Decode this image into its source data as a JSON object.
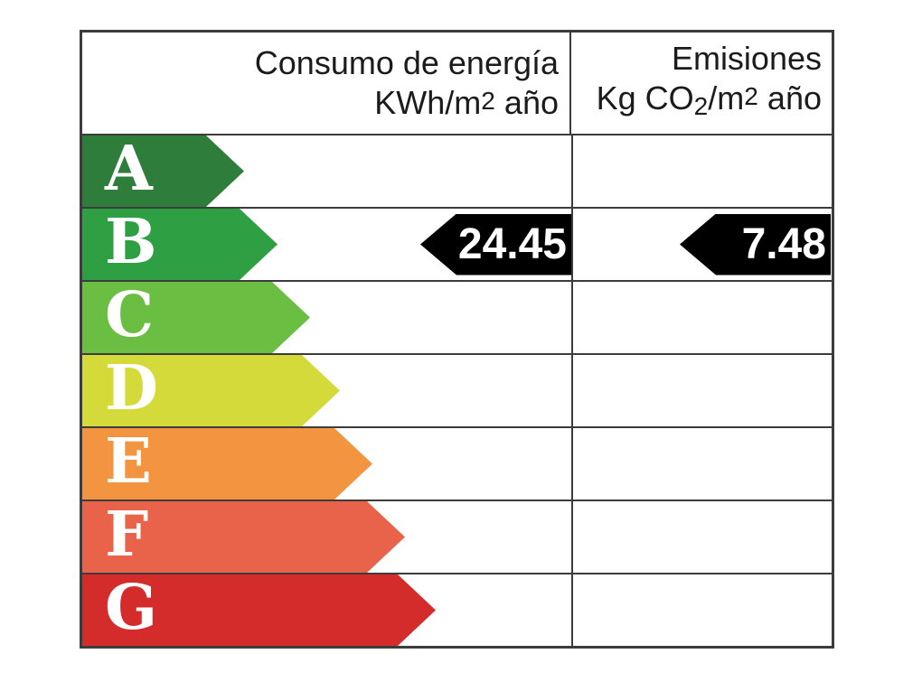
{
  "chart_data": {
    "type": "table",
    "columns": [
      "Consumo de energía KWh/m2 año",
      "Emisiones Kg CO2/m2 año"
    ],
    "categories": [
      "A",
      "B",
      "C",
      "D",
      "E",
      "F",
      "G"
    ],
    "selected_rating": "B",
    "values": {
      "consumo_kwh_m2_ano": 24.45,
      "emisiones_kg_co2_m2_ano": 7.48
    },
    "legend_position": "none",
    "grid": true
  },
  "header": {
    "energy_col": {
      "line1": "Consumo de energía",
      "line2": {
        "pre": "KWh/m",
        "sup": "2",
        "post": " año"
      }
    },
    "emissions_col": {
      "line1": "Emisiones",
      "line2": {
        "pre": "Kg CO",
        "sub": "2",
        "mid": "/m",
        "sup": "2",
        "post": " año"
      }
    }
  },
  "ratings": [
    {
      "letter": "A",
      "color": "#2e7d3a",
      "arrow_width": 179
    },
    {
      "letter": "B",
      "color": "#2ea043",
      "arrow_width": 216
    },
    {
      "letter": "C",
      "color": "#6abe42",
      "arrow_width": 252
    },
    {
      "letter": "D",
      "color": "#d4da3a",
      "arrow_width": 285
    },
    {
      "letter": "E",
      "color": "#f29440",
      "arrow_width": 321
    },
    {
      "letter": "F",
      "color": "#e9634a",
      "arrow_width": 357
    },
    {
      "letter": "G",
      "color": "#d32c2b",
      "arrow_width": 391
    }
  ],
  "markers": {
    "rating_row": "B",
    "consumption_value": "24.45",
    "emissions_value": "7.48",
    "color": "#000000",
    "text_color": "#ffffff"
  },
  "colors": {
    "grid": "#3c3c3c",
    "background": "#ffffff",
    "header_text": "#1b1b1b"
  }
}
